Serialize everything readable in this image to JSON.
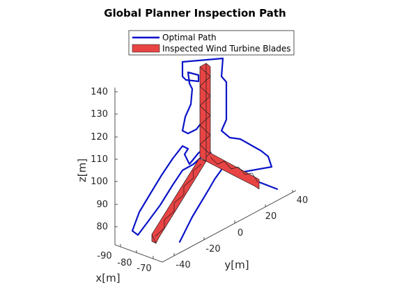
{
  "chart_data": {
    "type": "3d-line-surface",
    "title": "Global Planner Inspection Path",
    "xlabel": "x[m]",
    "ylabel": "y[m]",
    "zlabel": "z[m]",
    "x_ticks": [
      "-90",
      "-80",
      "-70"
    ],
    "y_ticks": [
      "-40",
      "-20",
      "0",
      "20",
      "40"
    ],
    "z_ticks": [
      "80",
      "90",
      "100",
      "110",
      "120",
      "130",
      "140"
    ],
    "legend": {
      "placement": "top",
      "entries": [
        {
          "label": "Optimal Path",
          "color": "#0000cc",
          "kind": "line"
        },
        {
          "label": "Inspected Wind Turbine Blades",
          "color": "#e84444",
          "kind": "patch"
        }
      ]
    },
    "grid": false,
    "colors": {
      "path": "#0a14c8",
      "blade_fill": "#e84444",
      "blade_edge": "#1a1a1a"
    }
  }
}
